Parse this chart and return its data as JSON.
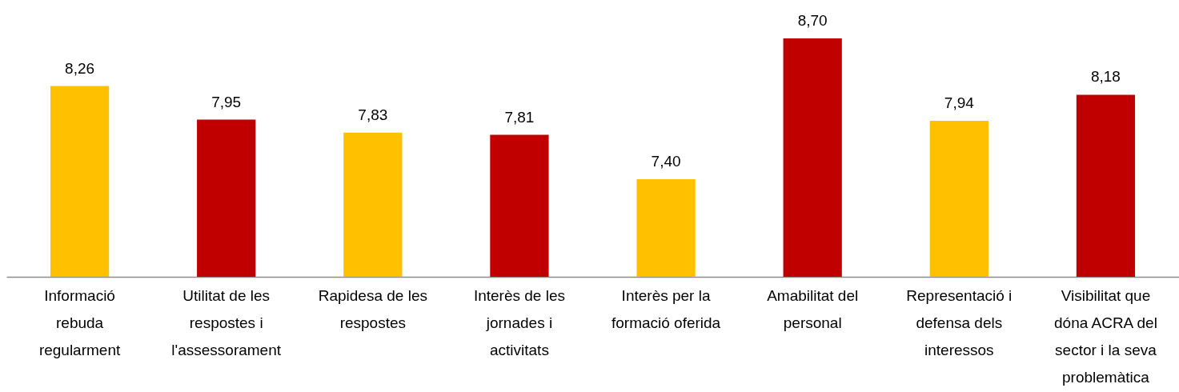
{
  "chart_data": {
    "type": "bar",
    "categories": [
      "Informació rebuda regularment",
      "Utilitat de les respostes i l'assessorament",
      "Rapidesa de les respostes",
      "Interès de les jornades i activitats",
      "Interès per la formació oferida",
      "Amabilitat del personal",
      "Representació i defensa dels interessos",
      "Visibilitat que dóna ACRA del sector i la seva problemàtica"
    ],
    "values": [
      8.26,
      7.95,
      7.83,
      7.81,
      7.4,
      8.7,
      7.94,
      8.18
    ],
    "value_labels": [
      "8,26",
      "7,95",
      "7,83",
      "7,81",
      "7,40",
      "8,70",
      "7,94",
      "8,18"
    ],
    "colors": [
      "#ffc000",
      "#c00000",
      "#ffc000",
      "#c00000",
      "#ffc000",
      "#c00000",
      "#ffc000",
      "#c00000"
    ],
    "ylim": [
      6.5,
      8.7
    ],
    "tick_labels": "x"
  }
}
